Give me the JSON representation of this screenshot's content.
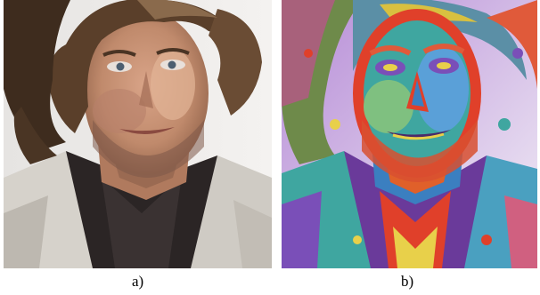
{
  "figure": {
    "panels": [
      {
        "caption": "a)",
        "image": "posterized-portrait-photo"
      },
      {
        "caption": "b)",
        "image": "false-color-portrait-photo"
      }
    ],
    "colors": {
      "skin": "#c9967a",
      "hair": "#5a3f2a",
      "jacket": "#d8d4cc",
      "shirt": "#2a2424",
      "false_red": "#e0402a",
      "false_teal": "#3fa6a0",
      "false_purple": "#7a4fb8"
    }
  }
}
